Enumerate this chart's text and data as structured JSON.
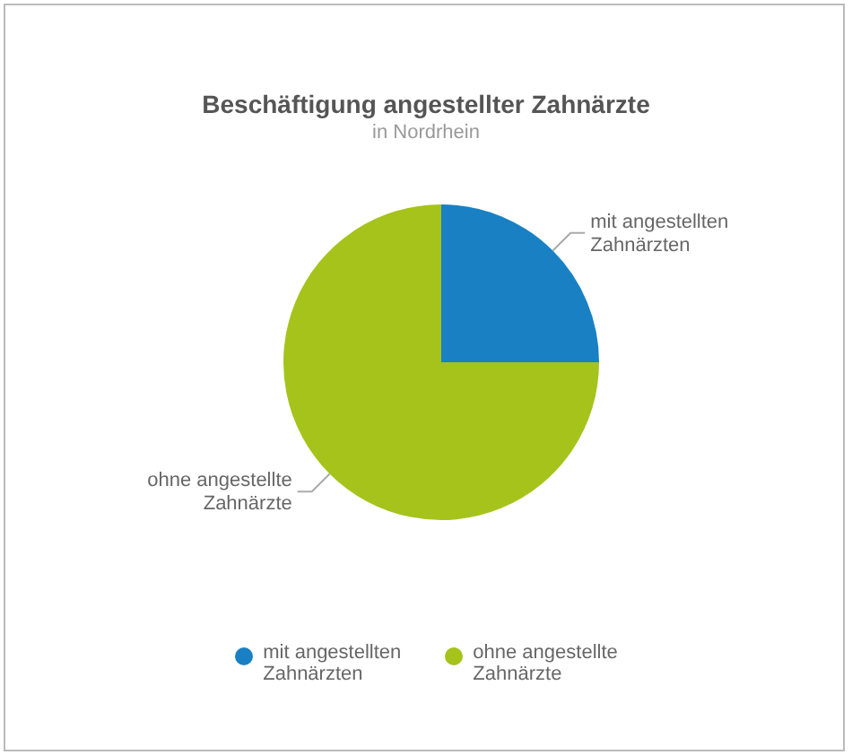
{
  "chart_data": {
    "type": "pie",
    "title": "Beschäftigung angestellter Zahnärzte",
    "subtitle": "in Nordrhein",
    "categories": [
      "mit angestellten Zahnärzten",
      "ohne angestellte Zahnärzte"
    ],
    "values": [
      25,
      75
    ],
    "colors": [
      "#1a80c4",
      "#a6c31c"
    ],
    "legend": "bottom"
  }
}
